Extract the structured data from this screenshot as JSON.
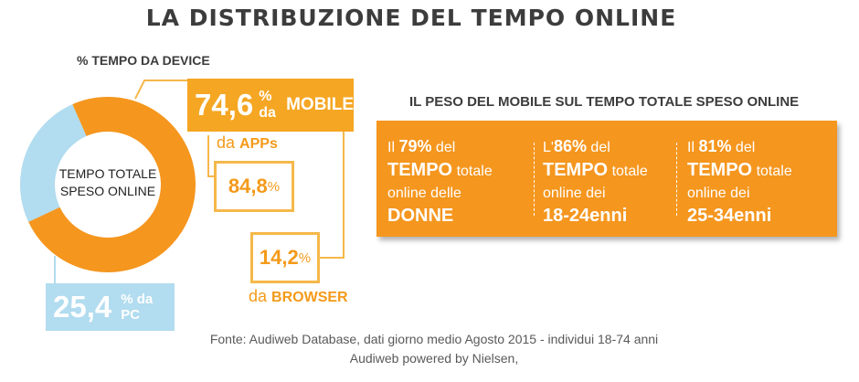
{
  "title": "LA DISTRIBUZIONE DEL TEMPO ONLINE",
  "subtitle": "% TEMPO DA DEVICE",
  "donut_center_line1": "TEMPO TOTALE",
  "donut_center_line2": "SPESO ONLINE",
  "mobile": {
    "value": "74,6",
    "suffix_small": "% da",
    "suffix_big": "MOBILE"
  },
  "apps": {
    "label_small": "da",
    "label_big": "APPs",
    "value": "84,8",
    "unit": "%"
  },
  "browser": {
    "value": "14,2",
    "unit": "%",
    "label_small": "da",
    "label_big": "BROWSER"
  },
  "pc": {
    "value": "25,4",
    "suffix": "% da PC"
  },
  "right_heading": "IL PESO DEL MOBILE SUL TEMPO TOTALE SPESO ONLINE",
  "stats": [
    {
      "prefix": "Il ",
      "pct": "79%",
      "after_pct": " del",
      "tempo": "TEMPO",
      "totale": " totale",
      "line3": "online delle",
      "group": "DONNE"
    },
    {
      "prefix": "L'",
      "pct": "86%",
      "after_pct": " del",
      "tempo": "TEMPO",
      "totale": " totale",
      "line3": "online dei",
      "group": "18-24enni"
    },
    {
      "prefix": "Il ",
      "pct": "81%",
      "after_pct": " del",
      "tempo": "TEMPO",
      "totale": " totale",
      "line3": "online dei",
      "group": "25-34enni"
    }
  ],
  "source_line1": "Fonte: Audiweb Database, dati giorno medio Agosto 2015 - individui 18-74 anni",
  "source_line2": "Audiweb powered by Nielsen,",
  "colors": {
    "mobile": "#f5961e",
    "pc": "#b2dcef",
    "mobile_outline": "#f5b84a"
  },
  "chart_data": {
    "type": "pie",
    "title": "% TEMPO DA DEVICE",
    "categories": [
      "MOBILE",
      "PC"
    ],
    "values": [
      74.6,
      25.4
    ],
    "sub_breakdown_mobile": {
      "categories": [
        "APPs",
        "BROWSER"
      ],
      "values": [
        84.8,
        14.2
      ]
    }
  }
}
